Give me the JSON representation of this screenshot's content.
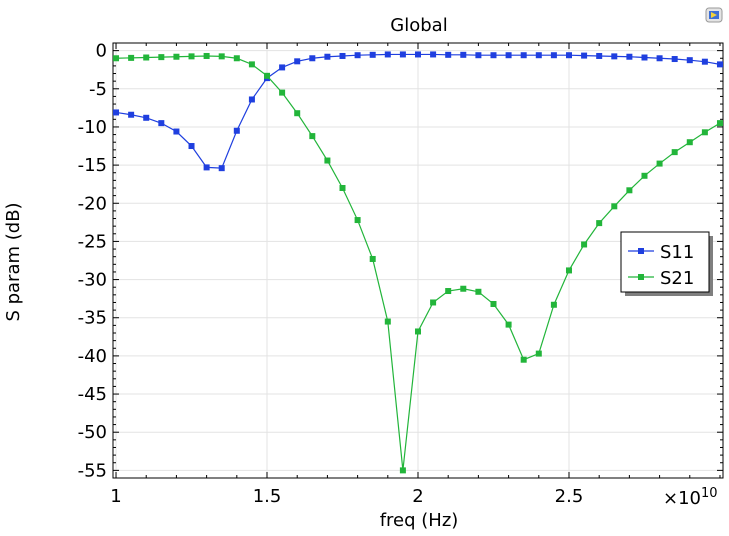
{
  "title": "Global",
  "toolbar": {
    "icon": "export-image-icon"
  },
  "chart_data": {
    "type": "line",
    "title": "Global",
    "xlabel": "freq (Hz)",
    "ylabel": "S param (dB)",
    "x_multiplier_label": "×10",
    "x_multiplier_exponent": "10",
    "xlim": [
      0.99,
      3.01
    ],
    "ylim": [
      -56,
      1
    ],
    "x_ticks": [
      1,
      1.5,
      2,
      2.5
    ],
    "x_tick_labels": [
      "1",
      "1.5",
      "2",
      "2.5"
    ],
    "y_ticks": [
      0,
      -5,
      -10,
      -15,
      -20,
      -25,
      -30,
      -35,
      -40,
      -45,
      -50,
      -55
    ],
    "y_tick_labels": [
      "0",
      "-5",
      "-10",
      "-15",
      "-20",
      "-25",
      "-30",
      "-35",
      "-40",
      "-45",
      "-50",
      "-55"
    ],
    "grid": true,
    "legend_position": "right",
    "x": [
      1.0,
      1.05,
      1.1,
      1.15,
      1.2,
      1.25,
      1.3,
      1.35,
      1.4,
      1.45,
      1.5,
      1.55,
      1.6,
      1.65,
      1.7,
      1.75,
      1.8,
      1.85,
      1.9,
      1.95,
      2.0,
      2.05,
      2.1,
      2.15,
      2.2,
      2.25,
      2.3,
      2.35,
      2.4,
      2.45,
      2.5,
      2.55,
      2.6,
      2.65,
      2.7,
      2.75,
      2.8,
      2.85,
      2.9,
      2.95,
      3.0
    ],
    "series": [
      {
        "name": "S11",
        "color": "#1f3fdf",
        "values": [
          -8.1,
          -8.4,
          -8.8,
          -9.5,
          -10.6,
          -12.5,
          -15.3,
          -15.4,
          -10.5,
          -6.4,
          -3.6,
          -2.2,
          -1.4,
          -1.0,
          -0.8,
          -0.7,
          -0.6,
          -0.55,
          -0.5,
          -0.5,
          -0.5,
          -0.5,
          -0.55,
          -0.55,
          -0.6,
          -0.6,
          -0.6,
          -0.6,
          -0.6,
          -0.6,
          -0.6,
          -0.65,
          -0.7,
          -0.75,
          -0.8,
          -0.9,
          -1.0,
          -1.1,
          -1.25,
          -1.45,
          -1.8
        ]
      },
      {
        "name": "S21",
        "color": "#22b53a",
        "values": [
          -1.0,
          -0.95,
          -0.9,
          -0.85,
          -0.8,
          -0.75,
          -0.7,
          -0.75,
          -1.0,
          -1.8,
          -3.3,
          -5.5,
          -8.2,
          -11.2,
          -14.4,
          -18.0,
          -22.2,
          -27.3,
          -35.5,
          -55.0,
          -36.8,
          -33.0,
          -31.5,
          -31.2,
          -31.6,
          -33.2,
          -35.9,
          -40.5,
          -39.7,
          -33.3,
          -28.8,
          -25.4,
          -22.6,
          -20.4,
          -18.3,
          -16.4,
          -14.8,
          -13.3,
          -12.0,
          -10.7,
          -9.5
        ]
      }
    ]
  }
}
